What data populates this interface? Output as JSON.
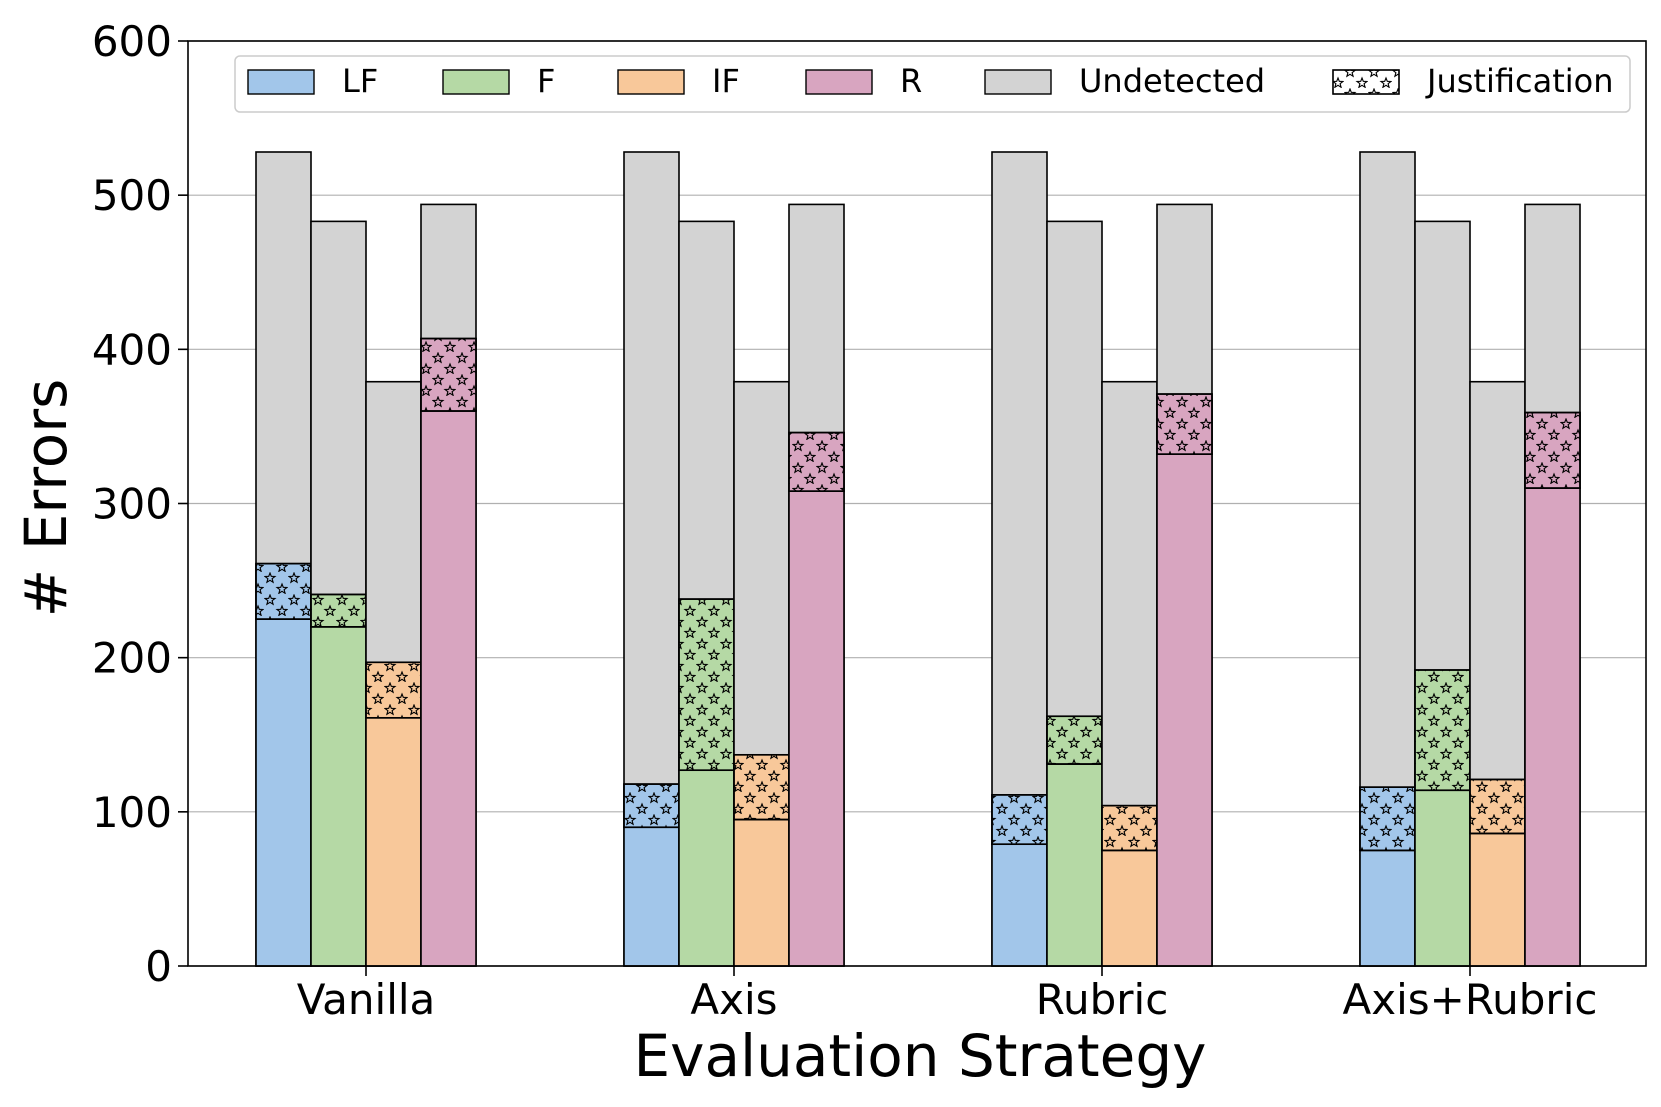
{
  "chart_data": {
    "type": "bar",
    "subtype": "grouped-stacked",
    "title": "",
    "xlabel": "Evaluation Strategy",
    "ylabel": "# Errors",
    "ylim": [
      0,
      600
    ],
    "yticks": [
      0,
      100,
      200,
      300,
      400,
      500,
      600
    ],
    "grid": "horizontal",
    "legend_placement": "top",
    "categories": [
      "Vanilla",
      "Axis",
      "Rubric",
      "Axis+Rubric"
    ],
    "legend": [
      {
        "name": "LF",
        "color": "#a2c6ea"
      },
      {
        "name": "F",
        "color": "#b5d9a5"
      },
      {
        "name": "IF",
        "color": "#f8c89a"
      },
      {
        "name": "R",
        "color": "#d8a5c0"
      },
      {
        "name": "Undetected",
        "color": "#d3d3d3"
      },
      {
        "name": "Justification",
        "color": "#ffffff",
        "pattern": "stars"
      }
    ],
    "series": [
      {
        "name": "LF",
        "color": "#a2c6ea",
        "total": [
          528,
          528,
          528,
          528
        ],
        "detected": [
          225,
          90,
          79,
          75
        ],
        "justification": [
          36,
          28,
          32,
          41
        ]
      },
      {
        "name": "F",
        "color": "#b5d9a5",
        "total": [
          483,
          483,
          483,
          483
        ],
        "detected": [
          220,
          127,
          131,
          114
        ],
        "justification": [
          21,
          111,
          31,
          78
        ]
      },
      {
        "name": "IF",
        "color": "#f8c89a",
        "total": [
          379,
          379,
          379,
          379
        ],
        "detected": [
          161,
          95,
          75,
          86
        ],
        "justification": [
          36,
          42,
          29,
          35
        ]
      },
      {
        "name": "R",
        "color": "#d8a5c0",
        "total": [
          494,
          494,
          494,
          494
        ],
        "detected": [
          360,
          308,
          332,
          310
        ],
        "justification": [
          47,
          38,
          39,
          49
        ]
      }
    ],
    "undetected_color": "#d3d3d3"
  }
}
